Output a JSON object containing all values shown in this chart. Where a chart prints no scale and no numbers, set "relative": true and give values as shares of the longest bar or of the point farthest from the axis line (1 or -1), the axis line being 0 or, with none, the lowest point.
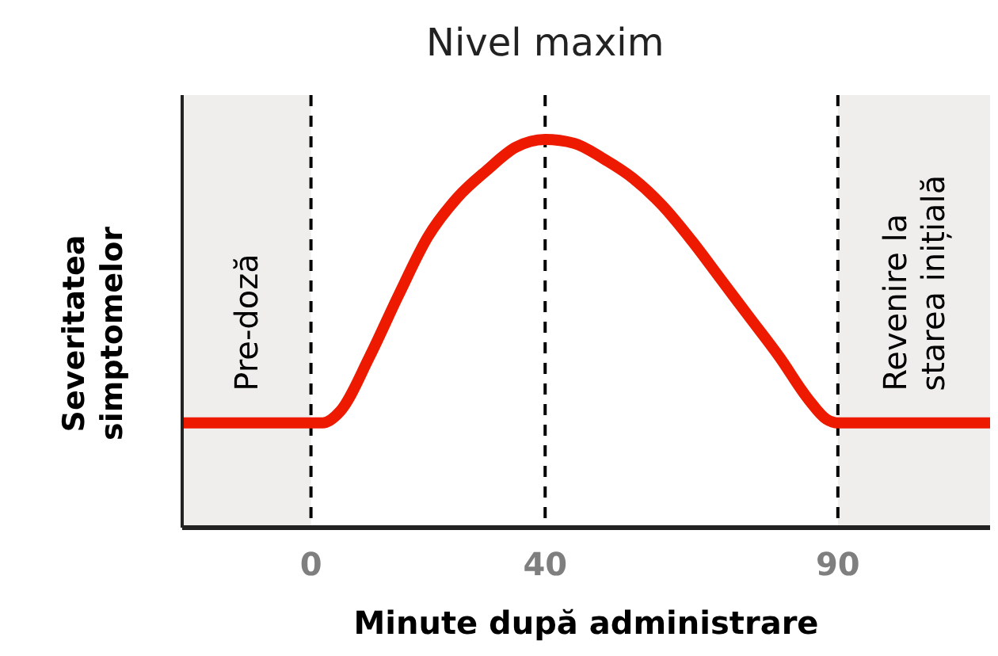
{
  "chart_data": {
    "type": "line",
    "relative": true,
    "xlabel": "Minute după administrare",
    "ylabel": "Severitatea simptomelor",
    "xlim": [
      -22,
      116
    ],
    "xticks": [
      0,
      40,
      90
    ],
    "grid": false,
    "marker": "none",
    "line_style": "solid",
    "x": [
      -22,
      2,
      5,
      10,
      15,
      20,
      25,
      30,
      35,
      40,
      45,
      50,
      55,
      60,
      65,
      70,
      75,
      80,
      85,
      88,
      90,
      116
    ],
    "series": [
      {
        "color": "#ee1a00",
        "values": [
          0.27,
          0.27,
          0.3,
          0.44,
          0.6,
          0.75,
          0.85,
          0.92,
          0.98,
          1,
          0.99,
          0.95,
          0.9,
          0.83,
          0.74,
          0.64,
          0.54,
          0.44,
          0.33,
          0.28,
          0.27,
          0.27
        ]
      }
    ],
    "bands": [
      {
        "axis": "x",
        "from": -22,
        "to": 0,
        "label": "Pre-doză",
        "color": "#efeeed"
      },
      {
        "axis": "x",
        "from": 90,
        "to": 116,
        "label": "Revenire la starea inițială",
        "color": "#efeeed"
      }
    ],
    "ref_lines": [
      {
        "axis": "x",
        "value": 0,
        "label": null,
        "line_style": "dashed",
        "color": "#000000"
      },
      {
        "axis": "x",
        "value": 40,
        "label": "Nivel maxim",
        "line_style": "dashed",
        "color": "#000000"
      },
      {
        "axis": "x",
        "value": 90,
        "label": null,
        "line_style": "dashed",
        "color": "#000000"
      }
    ]
  }
}
